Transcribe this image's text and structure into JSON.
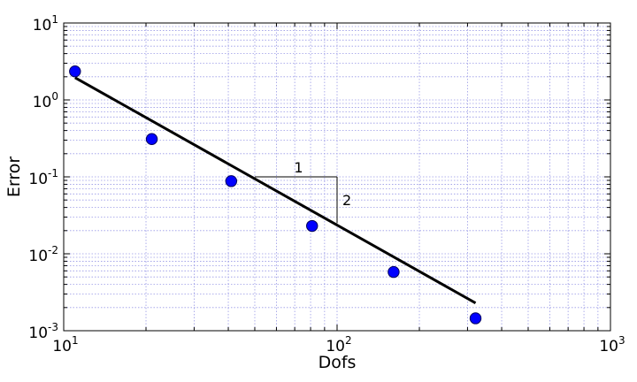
{
  "chart_data": {
    "type": "scatter",
    "xlabel": "Dofs",
    "ylabel": "Error",
    "xscale": "log",
    "yscale": "log",
    "xlim": [
      10,
      1000
    ],
    "ylim": [
      0.001,
      10
    ],
    "grid": true,
    "x_ticks": [
      {
        "base": "10",
        "exp": "1"
      },
      {
        "base": "10",
        "exp": "2"
      },
      {
        "base": "10",
        "exp": "3"
      }
    ],
    "y_ticks": [
      {
        "base": "10",
        "exp": "-3"
      },
      {
        "base": "10",
        "exp": "-2"
      },
      {
        "base": "10",
        "exp": "-1"
      },
      {
        "base": "10",
        "exp": "0"
      },
      {
        "base": "10",
        "exp": "1"
      }
    ],
    "points": {
      "x": [
        11,
        21,
        41,
        81,
        161,
        321
      ],
      "y": [
        2.35,
        0.31,
        0.088,
        0.023,
        0.0058,
        0.00145
      ],
      "color": "#0000ff"
    },
    "fit_line": {
      "x": [
        11,
        321
      ],
      "y": [
        1.95,
        0.00229
      ],
      "color": "#000000"
    },
    "slope_triangle": {
      "x0": 50,
      "x1": 100,
      "y_top": 0.1,
      "y_bottom": 0.025,
      "run_label": "1",
      "rise_label": "2"
    },
    "colors": {
      "grid": "#9999e6",
      "marker_fill": "#0000ff",
      "marker_edge": "#00005a"
    }
  }
}
